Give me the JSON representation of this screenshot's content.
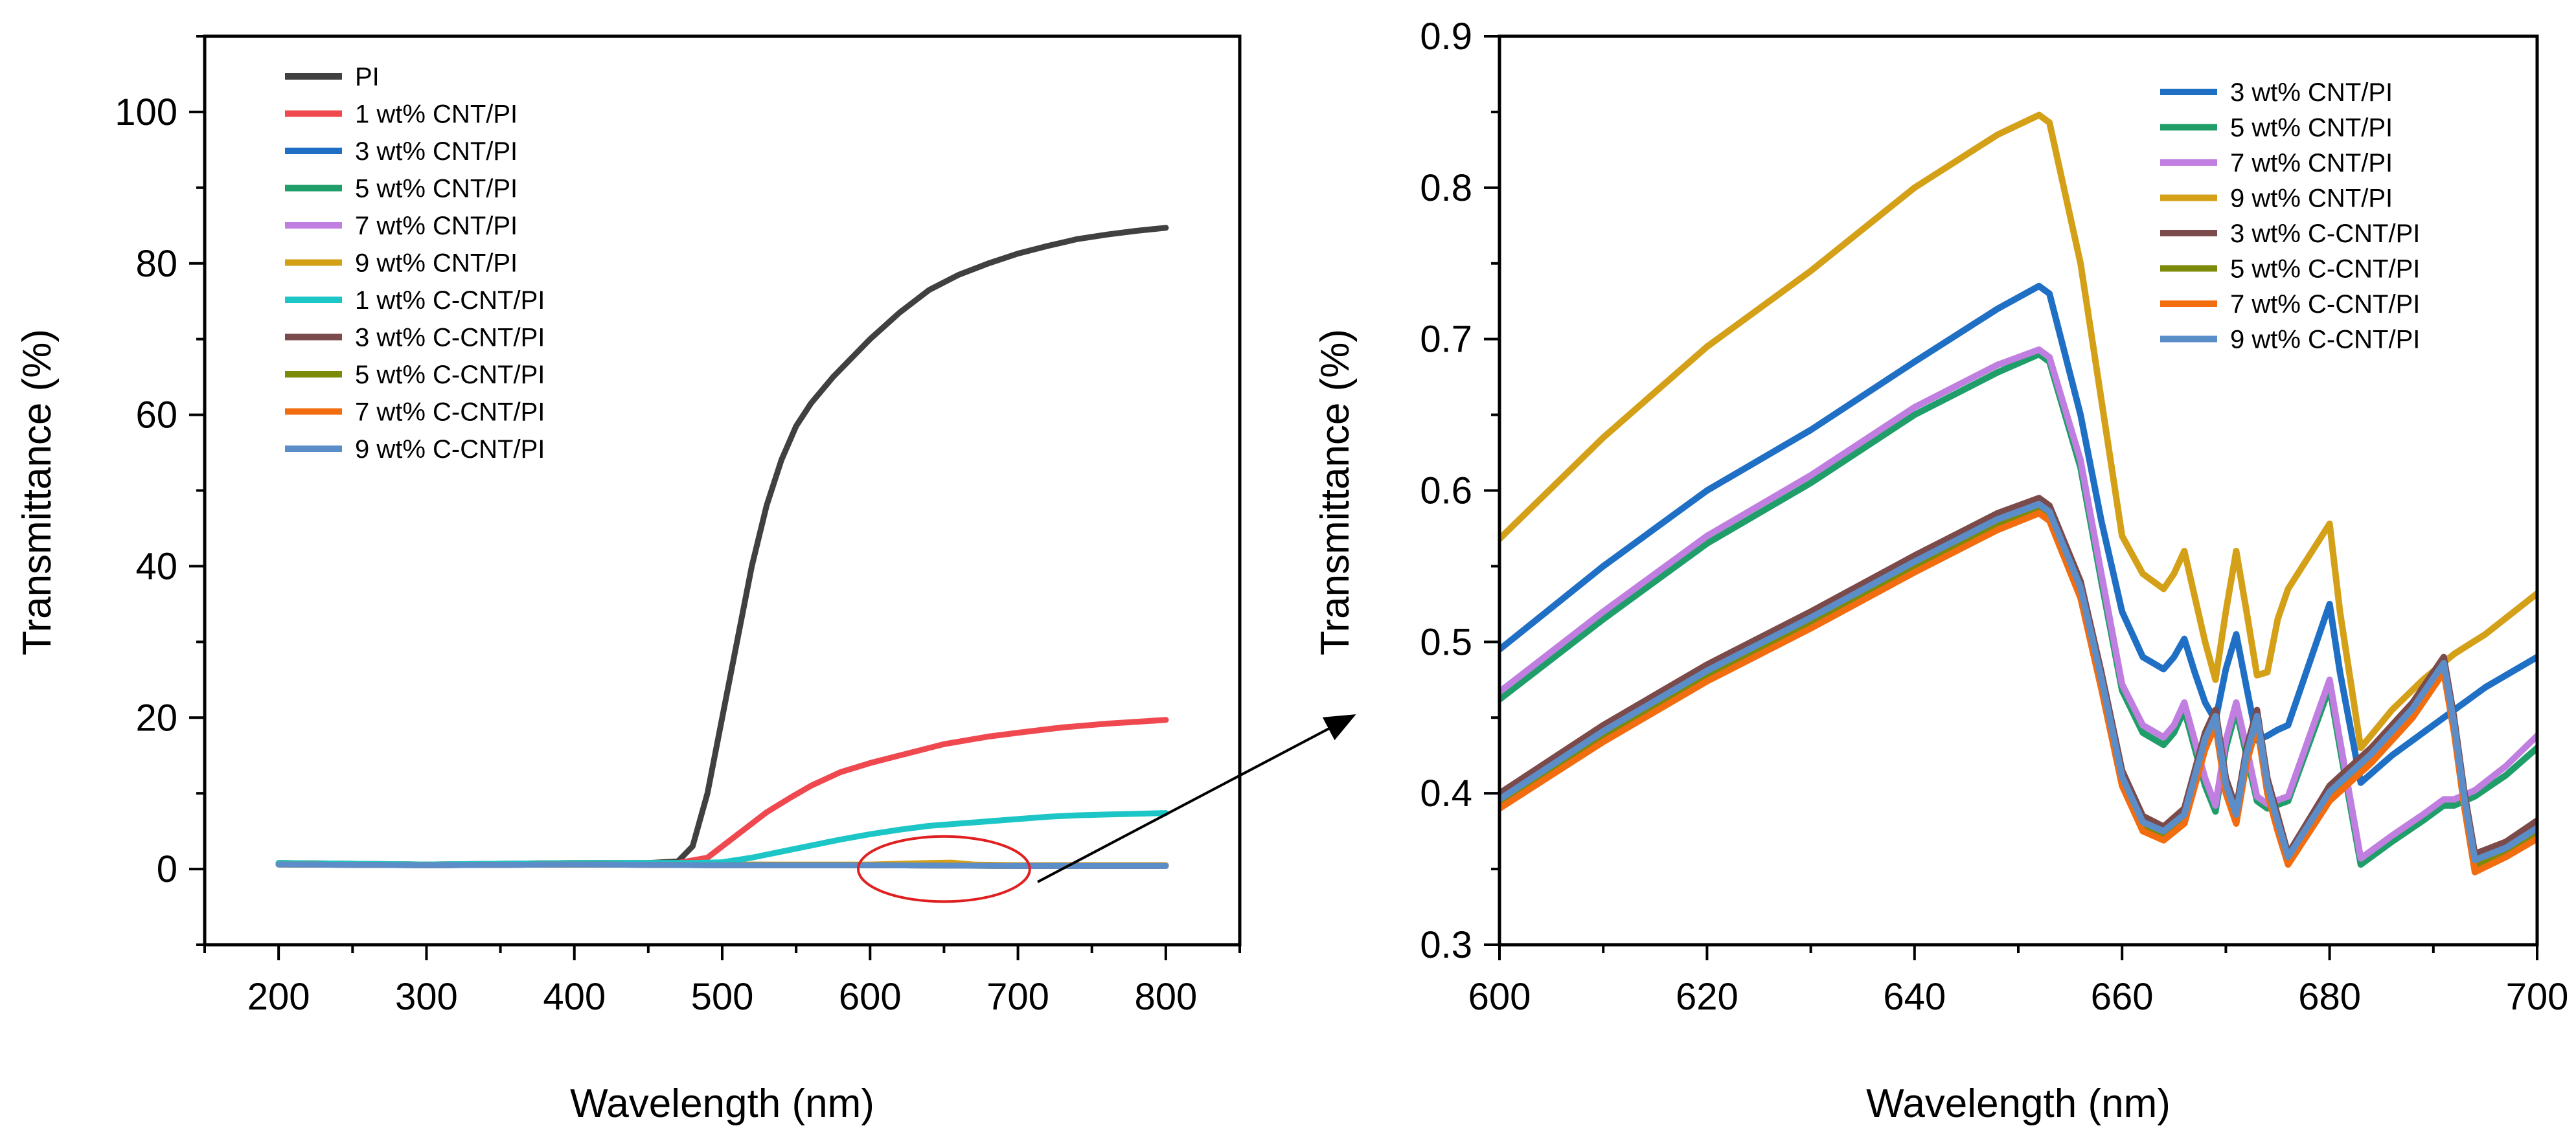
{
  "chart_data": [
    {
      "type": "line",
      "id": "left",
      "xlabel": "Wavelength (nm)",
      "ylabel": "Transmittance (%)",
      "xlim": [
        150,
        850
      ],
      "ylim": [
        -10,
        110
      ],
      "xticks": [
        200,
        300,
        400,
        500,
        600,
        700,
        800
      ],
      "yticks": [
        0,
        20,
        40,
        60,
        80,
        100
      ],
      "xtick_labels": [
        "200",
        "300",
        "400",
        "500",
        "600",
        "700",
        "800"
      ],
      "ytick_labels": [
        "0",
        "20",
        "40",
        "60",
        "80",
        "100"
      ],
      "legend_position": "top-left",
      "series": [
        {
          "name": "PI",
          "color": "#404040",
          "x": [
            200,
            300,
            400,
            450,
            470,
            480,
            490,
            500,
            510,
            520,
            530,
            540,
            550,
            560,
            575,
            590,
            600,
            620,
            640,
            660,
            680,
            700,
            720,
            740,
            760,
            780,
            800
          ],
          "y": [
            0.8,
            0.6,
            0.8,
            0.8,
            1.0,
            3.0,
            10.0,
            20.0,
            30.0,
            40.0,
            48.0,
            54.0,
            58.5,
            61.5,
            65.0,
            68.0,
            70.0,
            73.5,
            76.5,
            78.5,
            80.0,
            81.3,
            82.3,
            83.2,
            83.8,
            84.3,
            84.7
          ]
        },
        {
          "name": "1 wt% CNT/PI",
          "color": "#f0484f",
          "x": [
            200,
            300,
            400,
            470,
            490,
            500,
            510,
            520,
            530,
            545,
            560,
            580,
            600,
            620,
            650,
            680,
            700,
            730,
            760,
            800
          ],
          "y": [
            0.8,
            0.6,
            0.8,
            0.8,
            1.5,
            3.0,
            4.5,
            6.0,
            7.5,
            9.3,
            11.0,
            12.8,
            14.0,
            15.0,
            16.5,
            17.5,
            18.0,
            18.7,
            19.2,
            19.7
          ]
        },
        {
          "name": "3 wt% CNT/PI",
          "color": "#1f6fc5",
          "x": [
            200,
            300,
            400,
            500,
            600,
            700,
            800
          ],
          "y": [
            0.7,
            0.5,
            0.6,
            0.6,
            0.5,
            0.5,
            0.5
          ]
        },
        {
          "name": "5 wt% CNT/PI",
          "color": "#1f9e6a",
          "x": [
            200,
            300,
            400,
            500,
            600,
            700,
            800
          ],
          "y": [
            0.7,
            0.5,
            0.6,
            0.6,
            0.5,
            0.5,
            0.5
          ]
        },
        {
          "name": "7 wt% CNT/PI",
          "color": "#c07fe0",
          "x": [
            200,
            300,
            400,
            500,
            600,
            700,
            800
          ],
          "y": [
            0.7,
            0.5,
            0.6,
            0.6,
            0.5,
            0.5,
            0.5
          ]
        },
        {
          "name": "9 wt% CNT/PI",
          "color": "#d4a017",
          "x": [
            200,
            300,
            400,
            500,
            600,
            640,
            655,
            670,
            700,
            800
          ],
          "y": [
            0.7,
            0.5,
            0.6,
            0.6,
            0.6,
            0.8,
            0.85,
            0.6,
            0.5,
            0.5
          ]
        },
        {
          "name": "1 wt% C-CNT/PI",
          "color": "#1cc6c6",
          "x": [
            200,
            300,
            400,
            480,
            500,
            520,
            540,
            560,
            580,
            600,
            620,
            640,
            660,
            680,
            700,
            720,
            740,
            760,
            780,
            800
          ],
          "y": [
            0.8,
            0.6,
            0.8,
            0.8,
            0.9,
            1.5,
            2.3,
            3.1,
            3.9,
            4.6,
            5.2,
            5.7,
            6.0,
            6.3,
            6.6,
            6.9,
            7.1,
            7.2,
            7.3,
            7.4
          ]
        },
        {
          "name": "3 wt% C-CNT/PI",
          "color": "#7b4a4a",
          "x": [
            200,
            300,
            400,
            500,
            600,
            700,
            800
          ],
          "y": [
            0.6,
            0.5,
            0.6,
            0.5,
            0.5,
            0.4,
            0.4
          ]
        },
        {
          "name": "5 wt% C-CNT/PI",
          "color": "#7c8a0a",
          "x": [
            200,
            300,
            400,
            500,
            600,
            700,
            800
          ],
          "y": [
            0.6,
            0.5,
            0.6,
            0.5,
            0.5,
            0.4,
            0.4
          ]
        },
        {
          "name": "7 wt% C-CNT/PI",
          "color": "#f26d10",
          "x": [
            200,
            300,
            400,
            500,
            600,
            700,
            800
          ],
          "y": [
            0.6,
            0.5,
            0.6,
            0.5,
            0.5,
            0.4,
            0.4
          ]
        },
        {
          "name": "9 wt% C-CNT/PI",
          "color": "#5b8ec9",
          "x": [
            200,
            300,
            400,
            500,
            600,
            700,
            800
          ],
          "y": [
            0.6,
            0.5,
            0.6,
            0.5,
            0.5,
            0.4,
            0.4
          ]
        }
      ],
      "annotation": {
        "type": "ellipse",
        "color": "#e02020",
        "center_x": 650,
        "center_y": 0,
        "radius_x": 58,
        "radius_y": 4.3
      }
    },
    {
      "type": "line",
      "id": "right",
      "xlabel": "Wavelength (nm)",
      "ylabel": "Transmittance (%)",
      "xlim": [
        600,
        700
      ],
      "ylim": [
        0.3,
        0.9
      ],
      "xticks": [
        600,
        620,
        640,
        660,
        680,
        700
      ],
      "yticks": [
        0.3,
        0.4,
        0.5,
        0.6,
        0.7,
        0.8,
        0.9
      ],
      "xtick_labels": [
        "600",
        "620",
        "640",
        "660",
        "680",
        "700"
      ],
      "ytick_labels": [
        "0.3",
        "0.4",
        "0.5",
        "0.6",
        "0.7",
        "0.8",
        "0.9"
      ],
      "legend_position": "top-right",
      "series": [
        {
          "name": "3 wt% CNT/PI",
          "color": "#1f6fc5",
          "x": [
            600,
            610,
            620,
            630,
            640,
            648,
            652,
            653,
            656,
            658,
            660,
            662,
            664,
            665,
            666,
            667,
            668,
            669,
            670,
            671,
            672,
            673,
            674,
            675,
            676,
            680,
            681,
            683,
            686,
            689,
            692,
            695,
            700
          ],
          "y": [
            0.495,
            0.55,
            0.6,
            0.64,
            0.685,
            0.72,
            0.735,
            0.73,
            0.65,
            0.58,
            0.52,
            0.49,
            0.482,
            0.49,
            0.502,
            0.48,
            0.46,
            0.448,
            0.482,
            0.505,
            0.47,
            0.435,
            0.438,
            0.442,
            0.445,
            0.525,
            0.48,
            0.407,
            0.425,
            0.44,
            0.455,
            0.47,
            0.49
          ]
        },
        {
          "name": "5 wt% CNT/PI",
          "color": "#1f9e6a",
          "x": [
            600,
            610,
            620,
            630,
            640,
            648,
            652,
            653,
            656,
            658,
            660,
            662,
            664,
            665,
            666,
            667,
            668,
            669,
            670,
            671,
            672,
            673,
            674,
            676,
            680,
            681,
            683,
            686,
            689,
            691,
            692,
            694,
            697,
            700
          ],
          "y": [
            0.462,
            0.515,
            0.565,
            0.605,
            0.65,
            0.678,
            0.69,
            0.685,
            0.615,
            0.54,
            0.468,
            0.44,
            0.432,
            0.44,
            0.455,
            0.43,
            0.405,
            0.388,
            0.43,
            0.455,
            0.425,
            0.395,
            0.39,
            0.395,
            0.47,
            0.43,
            0.353,
            0.368,
            0.382,
            0.392,
            0.392,
            0.398,
            0.412,
            0.43
          ]
        },
        {
          "name": "7 wt% CNT/PI",
          "color": "#c07fe0",
          "x": [
            600,
            610,
            620,
            630,
            640,
            648,
            652,
            653,
            656,
            658,
            660,
            662,
            664,
            665,
            666,
            667,
            668,
            669,
            670,
            671,
            672,
            673,
            674,
            676,
            680,
            681,
            683,
            686,
            689,
            691,
            692,
            694,
            697,
            700
          ],
          "y": [
            0.467,
            0.52,
            0.57,
            0.61,
            0.655,
            0.683,
            0.693,
            0.688,
            0.62,
            0.545,
            0.472,
            0.445,
            0.437,
            0.445,
            0.46,
            0.435,
            0.41,
            0.392,
            0.435,
            0.46,
            0.43,
            0.398,
            0.393,
            0.398,
            0.475,
            0.435,
            0.357,
            0.372,
            0.386,
            0.396,
            0.396,
            0.402,
            0.418,
            0.438
          ]
        },
        {
          "name": "9 wt% CNT/PI",
          "color": "#d4a017",
          "x": [
            600,
            610,
            620,
            630,
            640,
            648,
            652,
            653,
            656,
            658,
            660,
            662,
            664,
            665,
            666,
            667,
            668,
            669,
            670,
            671,
            672,
            673,
            674,
            675,
            676,
            680,
            681,
            683,
            686,
            689,
            692,
            695,
            700
          ],
          "y": [
            0.568,
            0.635,
            0.695,
            0.745,
            0.8,
            0.835,
            0.848,
            0.843,
            0.75,
            0.66,
            0.57,
            0.545,
            0.535,
            0.545,
            0.56,
            0.53,
            0.5,
            0.475,
            0.52,
            0.56,
            0.52,
            0.478,
            0.48,
            0.515,
            0.535,
            0.578,
            0.52,
            0.43,
            0.455,
            0.475,
            0.492,
            0.505,
            0.532
          ]
        },
        {
          "name": "3 wt% C-CNT/PI",
          "color": "#7b4a4a",
          "x": [
            600,
            610,
            620,
            630,
            640,
            648,
            652,
            653,
            656,
            658,
            660,
            662,
            664,
            666,
            668,
            669,
            670,
            671,
            672,
            673,
            674,
            675,
            676,
            680,
            684,
            688,
            691,
            692,
            693,
            694,
            697,
            700
          ],
          "y": [
            0.4,
            0.445,
            0.485,
            0.52,
            0.557,
            0.585,
            0.595,
            0.59,
            0.54,
            0.48,
            0.415,
            0.385,
            0.378,
            0.39,
            0.44,
            0.455,
            0.41,
            0.39,
            0.43,
            0.455,
            0.41,
            0.385,
            0.36,
            0.405,
            0.43,
            0.46,
            0.49,
            0.45,
            0.4,
            0.36,
            0.368,
            0.382
          ]
        },
        {
          "name": "5 wt% C-CNT/PI",
          "color": "#7c8a0a",
          "x": [
            600,
            610,
            620,
            630,
            640,
            648,
            652,
            653,
            656,
            658,
            660,
            662,
            664,
            666,
            668,
            669,
            670,
            671,
            672,
            673,
            674,
            675,
            676,
            680,
            684,
            688,
            691,
            692,
            693,
            694,
            697,
            700
          ],
          "y": [
            0.392,
            0.437,
            0.477,
            0.512,
            0.549,
            0.577,
            0.588,
            0.583,
            0.532,
            0.472,
            0.408,
            0.378,
            0.372,
            0.383,
            0.432,
            0.448,
            0.403,
            0.383,
            0.423,
            0.448,
            0.403,
            0.378,
            0.355,
            0.398,
            0.423,
            0.453,
            0.483,
            0.443,
            0.393,
            0.352,
            0.36,
            0.372
          ]
        },
        {
          "name": "7 wt% C-CNT/PI",
          "color": "#f26d10",
          "x": [
            600,
            610,
            620,
            630,
            640,
            648,
            652,
            653,
            656,
            658,
            660,
            662,
            664,
            666,
            668,
            669,
            670,
            671,
            672,
            673,
            674,
            675,
            676,
            680,
            684,
            688,
            691,
            692,
            693,
            694,
            697,
            700
          ],
          "y": [
            0.39,
            0.434,
            0.474,
            0.509,
            0.546,
            0.574,
            0.585,
            0.58,
            0.529,
            0.469,
            0.405,
            0.375,
            0.369,
            0.38,
            0.429,
            0.445,
            0.4,
            0.38,
            0.42,
            0.445,
            0.4,
            0.375,
            0.353,
            0.395,
            0.42,
            0.45,
            0.48,
            0.44,
            0.39,
            0.348,
            0.358,
            0.37
          ]
        },
        {
          "name": "9 wt% C-CNT/PI",
          "color": "#5b8ec9",
          "x": [
            600,
            610,
            620,
            630,
            640,
            648,
            652,
            653,
            656,
            658,
            660,
            662,
            664,
            666,
            668,
            669,
            670,
            671,
            672,
            673,
            674,
            675,
            676,
            680,
            684,
            688,
            691,
            692,
            693,
            694,
            697,
            700
          ],
          "y": [
            0.396,
            0.441,
            0.481,
            0.516,
            0.553,
            0.581,
            0.591,
            0.586,
            0.536,
            0.476,
            0.411,
            0.381,
            0.375,
            0.386,
            0.436,
            0.451,
            0.406,
            0.386,
            0.426,
            0.451,
            0.406,
            0.381,
            0.358,
            0.401,
            0.426,
            0.456,
            0.486,
            0.446,
            0.396,
            0.356,
            0.364,
            0.377
          ]
        }
      ]
    }
  ]
}
